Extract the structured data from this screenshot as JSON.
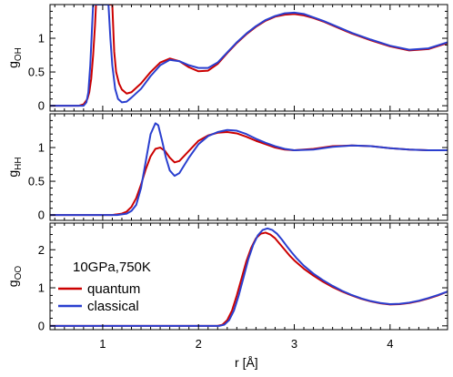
{
  "chart_data": {
    "type": "line",
    "xlabel": "r [Å]",
    "xlim": [
      0.45,
      4.6
    ],
    "x_ticks": [
      1,
      2,
      3,
      4
    ],
    "x_tick_labels": [
      "1",
      "2",
      "3",
      "4"
    ],
    "colors": {
      "quantum": "#cc0000",
      "classical": "#2a3fcf"
    },
    "legend": {
      "title": "10GPa,750K",
      "entries": [
        {
          "name": "quantum",
          "color": "#cc0000"
        },
        {
          "name": "classical",
          "color": "#2a3fcf"
        }
      ],
      "location": "panel 3, left"
    },
    "panels": [
      {
        "id": "oh",
        "ylabel_main": "g",
        "ylabel_sub": "OH",
        "ylim": [
          -0.08,
          1.5
        ],
        "y_ticks": [
          0,
          0.5,
          1
        ],
        "y_tick_labels": [
          "0",
          "0.5",
          "1"
        ],
        "series": [
          {
            "name": "quantum",
            "color": "#cc0000",
            "x": [
              0.45,
              0.75,
              0.8,
              0.84,
              0.86,
              0.88,
              0.9,
              0.92,
              0.93,
              1.1,
              1.12,
              1.14,
              1.17,
              1.2,
              1.25,
              1.3,
              1.4,
              1.5,
              1.6,
              1.7,
              1.8,
              1.9,
              2.0,
              2.1,
              2.2,
              2.3,
              2.4,
              2.5,
              2.6,
              2.7,
              2.8,
              2.9,
              3.0,
              3.1,
              3.2,
              3.3,
              3.4,
              3.6,
              3.8,
              4.0,
              4.2,
              4.4,
              4.6
            ],
            "y": [
              0,
              0,
              0.02,
              0.1,
              0.2,
              0.4,
              0.75,
              1.2,
              1.5,
              1.5,
              0.8,
              0.5,
              0.33,
              0.24,
              0.18,
              0.2,
              0.33,
              0.5,
              0.64,
              0.7,
              0.66,
              0.57,
              0.51,
              0.52,
              0.62,
              0.78,
              0.93,
              1.06,
              1.17,
              1.26,
              1.32,
              1.35,
              1.36,
              1.34,
              1.3,
              1.25,
              1.19,
              1.07,
              0.97,
              0.88,
              0.82,
              0.84,
              0.93
            ]
          },
          {
            "name": "classical",
            "color": "#2a3fcf",
            "x": [
              0.45,
              0.8,
              0.83,
              0.85,
              0.87,
              0.89,
              0.9,
              1.06,
              1.08,
              1.1,
              1.13,
              1.16,
              1.2,
              1.25,
              1.3,
              1.4,
              1.5,
              1.6,
              1.7,
              1.8,
              1.9,
              2.0,
              2.1,
              2.2,
              2.3,
              2.4,
              2.5,
              2.6,
              2.7,
              2.8,
              2.9,
              3.0,
              3.1,
              3.2,
              3.3,
              3.4,
              3.6,
              3.8,
              4.0,
              4.2,
              4.4,
              4.6
            ],
            "y": [
              0,
              0,
              0.05,
              0.2,
              0.6,
              1.2,
              1.5,
              1.5,
              1.0,
              0.6,
              0.25,
              0.1,
              0.05,
              0.06,
              0.12,
              0.25,
              0.44,
              0.6,
              0.68,
              0.66,
              0.6,
              0.56,
              0.56,
              0.64,
              0.79,
              0.94,
              1.07,
              1.18,
              1.27,
              1.33,
              1.37,
              1.38,
              1.36,
              1.31,
              1.26,
              1.2,
              1.08,
              0.98,
              0.89,
              0.83,
              0.85,
              0.94
            ]
          }
        ]
      },
      {
        "id": "hh",
        "ylabel_main": "g",
        "ylabel_sub": "HH",
        "ylim": [
          -0.08,
          1.5
        ],
        "y_ticks": [
          0,
          0.5,
          1
        ],
        "y_tick_labels": [
          "0",
          "0.5",
          "1"
        ],
        "series": [
          {
            "name": "quantum",
            "color": "#cc0000",
            "x": [
              0.45,
              1.1,
              1.2,
              1.25,
              1.3,
              1.35,
              1.4,
              1.45,
              1.5,
              1.55,
              1.6,
              1.65,
              1.7,
              1.75,
              1.8,
              1.9,
              2.0,
              2.1,
              2.2,
              2.3,
              2.4,
              2.5,
              2.6,
              2.7,
              2.8,
              2.9,
              3.0,
              3.2,
              3.4,
              3.6,
              3.8,
              4.0,
              4.2,
              4.4,
              4.6
            ],
            "y": [
              0,
              0,
              0.02,
              0.05,
              0.12,
              0.25,
              0.45,
              0.68,
              0.87,
              0.98,
              1.0,
              0.95,
              0.85,
              0.78,
              0.8,
              0.95,
              1.1,
              1.18,
              1.22,
              1.23,
              1.21,
              1.16,
              1.1,
              1.05,
              1.0,
              0.97,
              0.96,
              0.98,
              1.02,
              1.03,
              1.02,
              0.99,
              0.97,
              0.96,
              0.96
            ]
          },
          {
            "name": "classical",
            "color": "#2a3fcf",
            "x": [
              0.45,
              1.15,
              1.25,
              1.3,
              1.35,
              1.4,
              1.45,
              1.5,
              1.55,
              1.58,
              1.62,
              1.66,
              1.7,
              1.75,
              1.8,
              1.9,
              2.0,
              2.1,
              2.2,
              2.3,
              2.4,
              2.5,
              2.6,
              2.7,
              2.8,
              2.9,
              3.0,
              3.2,
              3.4,
              3.6,
              3.8,
              4.0,
              4.2,
              4.4,
              4.6
            ],
            "y": [
              0,
              0,
              0.02,
              0.06,
              0.15,
              0.4,
              0.8,
              1.2,
              1.36,
              1.33,
              1.1,
              0.85,
              0.66,
              0.58,
              0.62,
              0.85,
              1.05,
              1.17,
              1.23,
              1.26,
              1.25,
              1.2,
              1.13,
              1.07,
              1.02,
              0.98,
              0.96,
              0.97,
              1.01,
              1.03,
              1.02,
              0.99,
              0.97,
              0.96,
              0.96
            ]
          }
        ]
      },
      {
        "id": "oo",
        "ylabel_main": "g",
        "ylabel_sub": "OO",
        "ylim": [
          -0.1,
          2.7
        ],
        "y_ticks": [
          0,
          1,
          2
        ],
        "y_tick_labels": [
          "0",
          "1",
          "2"
        ],
        "series": [
          {
            "name": "quantum",
            "color": "#cc0000",
            "x": [
              0.45,
              2.2,
              2.25,
              2.3,
              2.35,
              2.4,
              2.45,
              2.5,
              2.55,
              2.6,
              2.65,
              2.7,
              2.75,
              2.8,
              2.85,
              2.9,
              2.95,
              3.0,
              3.1,
              3.2,
              3.3,
              3.4,
              3.5,
              3.6,
              3.7,
              3.8,
              3.9,
              4.0,
              4.1,
              4.2,
              4.3,
              4.4,
              4.5,
              4.6
            ],
            "y": [
              0,
              0,
              0.03,
              0.15,
              0.4,
              0.8,
              1.25,
              1.7,
              2.05,
              2.3,
              2.42,
              2.45,
              2.4,
              2.3,
              2.15,
              2.0,
              1.85,
              1.72,
              1.5,
              1.32,
              1.16,
              1.02,
              0.9,
              0.8,
              0.71,
              0.64,
              0.59,
              0.56,
              0.57,
              0.6,
              0.65,
              0.72,
              0.8,
              0.9
            ]
          },
          {
            "name": "classical",
            "color": "#2a3fcf",
            "x": [
              0.45,
              2.22,
              2.27,
              2.32,
              2.37,
              2.42,
              2.47,
              2.52,
              2.57,
              2.62,
              2.67,
              2.72,
              2.77,
              2.82,
              2.87,
              2.92,
              2.97,
              3.02,
              3.1,
              3.2,
              3.3,
              3.4,
              3.5,
              3.6,
              3.7,
              3.8,
              3.9,
              4.0,
              4.1,
              4.2,
              4.3,
              4.4,
              4.5,
              4.6
            ],
            "y": [
              0,
              0,
              0.03,
              0.15,
              0.4,
              0.8,
              1.27,
              1.75,
              2.12,
              2.38,
              2.52,
              2.56,
              2.52,
              2.42,
              2.27,
              2.1,
              1.94,
              1.79,
              1.58,
              1.37,
              1.2,
              1.05,
              0.92,
              0.81,
              0.72,
              0.65,
              0.6,
              0.57,
              0.58,
              0.61,
              0.66,
              0.73,
              0.81,
              0.9
            ]
          }
        ]
      }
    ]
  }
}
